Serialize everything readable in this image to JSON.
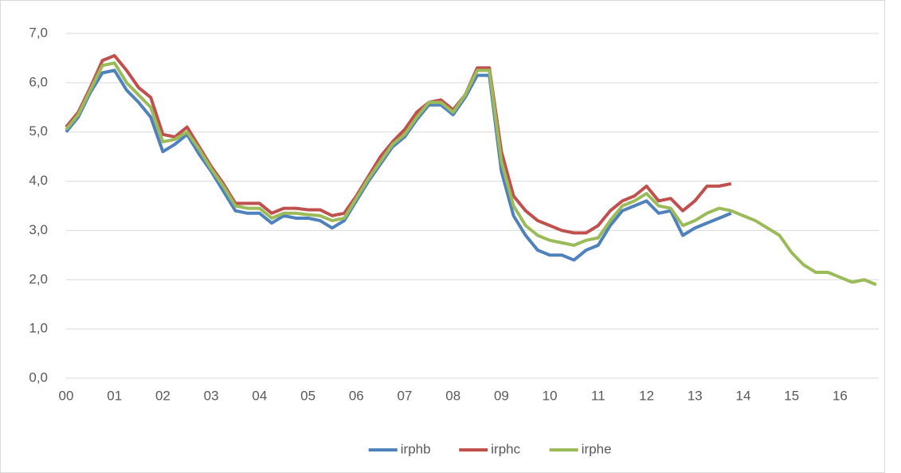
{
  "chart_data": {
    "type": "line",
    "x": [
      2000,
      2000.25,
      2000.5,
      2000.75,
      2001,
      2001.25,
      2001.5,
      2001.75,
      2002,
      2002.25,
      2002.5,
      2002.75,
      2003,
      2003.25,
      2003.5,
      2003.75,
      2004,
      2004.25,
      2004.5,
      2004.75,
      2005,
      2005.25,
      2005.5,
      2005.75,
      2006,
      2006.25,
      2006.5,
      2006.75,
      2007,
      2007.25,
      2007.5,
      2007.75,
      2008,
      2008.25,
      2008.5,
      2008.75,
      2009,
      2009.25,
      2009.5,
      2009.75,
      2010,
      2010.25,
      2010.5,
      2010.75,
      2011,
      2011.25,
      2011.5,
      2011.75,
      2012,
      2012.25,
      2012.5,
      2012.75,
      2013,
      2013.25,
      2013.5,
      2013.75,
      2014,
      2014.25,
      2014.5,
      2014.75,
      2015,
      2015.25,
      2015.5,
      2015.75,
      2016,
      2016.25,
      2016.5,
      2016.75
    ],
    "series": [
      {
        "name": "irphb",
        "color": "#4f81bd",
        "values": [
          5.0,
          5.3,
          5.8,
          6.2,
          6.25,
          5.85,
          5.6,
          5.3,
          4.6,
          4.75,
          4.95,
          4.55,
          4.2,
          3.8,
          3.4,
          3.35,
          3.35,
          3.15,
          3.3,
          3.25,
          3.25,
          3.2,
          3.05,
          3.2,
          3.6,
          4.0,
          4.35,
          4.7,
          4.9,
          5.25,
          5.55,
          5.55,
          5.35,
          5.7,
          6.15,
          6.15,
          4.2,
          3.3,
          2.9,
          2.6,
          2.5,
          2.5,
          2.4,
          2.6,
          2.7,
          3.1,
          3.4,
          3.5,
          3.6,
          3.35,
          3.4,
          2.9,
          3.05,
          3.15,
          3.25,
          3.35,
          null,
          null,
          null,
          null,
          null,
          null,
          null,
          null,
          null,
          null,
          null,
          null
        ]
      },
      {
        "name": "irphc",
        "color": "#c0504d",
        "values": [
          5.1,
          5.4,
          5.9,
          6.45,
          6.55,
          6.25,
          5.9,
          5.7,
          4.95,
          4.9,
          5.1,
          4.7,
          4.3,
          3.95,
          3.55,
          3.55,
          3.55,
          3.35,
          3.45,
          3.45,
          3.42,
          3.42,
          3.3,
          3.35,
          3.7,
          4.1,
          4.5,
          4.8,
          5.05,
          5.4,
          5.6,
          5.65,
          5.45,
          5.75,
          6.3,
          6.3,
          4.6,
          3.7,
          3.4,
          3.2,
          3.1,
          3.0,
          2.95,
          2.95,
          3.1,
          3.4,
          3.6,
          3.7,
          3.9,
          3.6,
          3.65,
          3.4,
          3.6,
          3.9,
          3.9,
          3.95,
          null,
          null,
          null,
          null,
          null,
          null,
          null,
          null,
          null,
          null,
          null,
          null
        ]
      },
      {
        "name": "irphe",
        "color": "#9bbb59",
        "values": [
          5.05,
          5.35,
          5.85,
          6.35,
          6.4,
          6.0,
          5.75,
          5.5,
          4.8,
          4.85,
          5.0,
          4.65,
          4.25,
          3.9,
          3.5,
          3.45,
          3.45,
          3.25,
          3.35,
          3.35,
          3.32,
          3.3,
          3.2,
          3.25,
          3.65,
          4.05,
          4.4,
          4.75,
          4.95,
          5.3,
          5.6,
          5.6,
          5.4,
          5.75,
          6.25,
          6.25,
          4.4,
          3.5,
          3.1,
          2.9,
          2.8,
          2.75,
          2.7,
          2.8,
          2.85,
          3.2,
          3.5,
          3.6,
          3.75,
          3.5,
          3.45,
          3.1,
          3.2,
          3.35,
          3.45,
          3.4,
          3.3,
          3.2,
          3.05,
          2.9,
          2.55,
          2.3,
          2.15,
          2.15,
          2.05,
          1.95,
          2.0,
          1.9
        ]
      }
    ],
    "xlim": [
      2000,
      2016.8
    ],
    "xticks": [
      {
        "value": 2000,
        "label": "00"
      },
      {
        "value": 2001,
        "label": "01"
      },
      {
        "value": 2002,
        "label": "02"
      },
      {
        "value": 2003,
        "label": "03"
      },
      {
        "value": 2004,
        "label": "04"
      },
      {
        "value": 2005,
        "label": "05"
      },
      {
        "value": 2006,
        "label": "06"
      },
      {
        "value": 2007,
        "label": "07"
      },
      {
        "value": 2008,
        "label": "08"
      },
      {
        "value": 2009,
        "label": "09"
      },
      {
        "value": 2010,
        "label": "10"
      },
      {
        "value": 2011,
        "label": "11"
      },
      {
        "value": 2012,
        "label": "12"
      },
      {
        "value": 2013,
        "label": "13"
      },
      {
        "value": 2014,
        "label": "14"
      },
      {
        "value": 2015,
        "label": "15"
      },
      {
        "value": 2016,
        "label": "16"
      }
    ],
    "ylim": [
      0,
      7
    ],
    "yticks": [
      {
        "value": 0,
        "label": "0,0"
      },
      {
        "value": 1,
        "label": "1,0"
      },
      {
        "value": 2,
        "label": "2,0"
      },
      {
        "value": 3,
        "label": "3,0"
      },
      {
        "value": 4,
        "label": "4,0"
      },
      {
        "value": 5,
        "label": "5,0"
      },
      {
        "value": 6,
        "label": "6,0"
      },
      {
        "value": 7,
        "label": "7,0"
      }
    ],
    "grid": true,
    "legend": "bottom"
  }
}
